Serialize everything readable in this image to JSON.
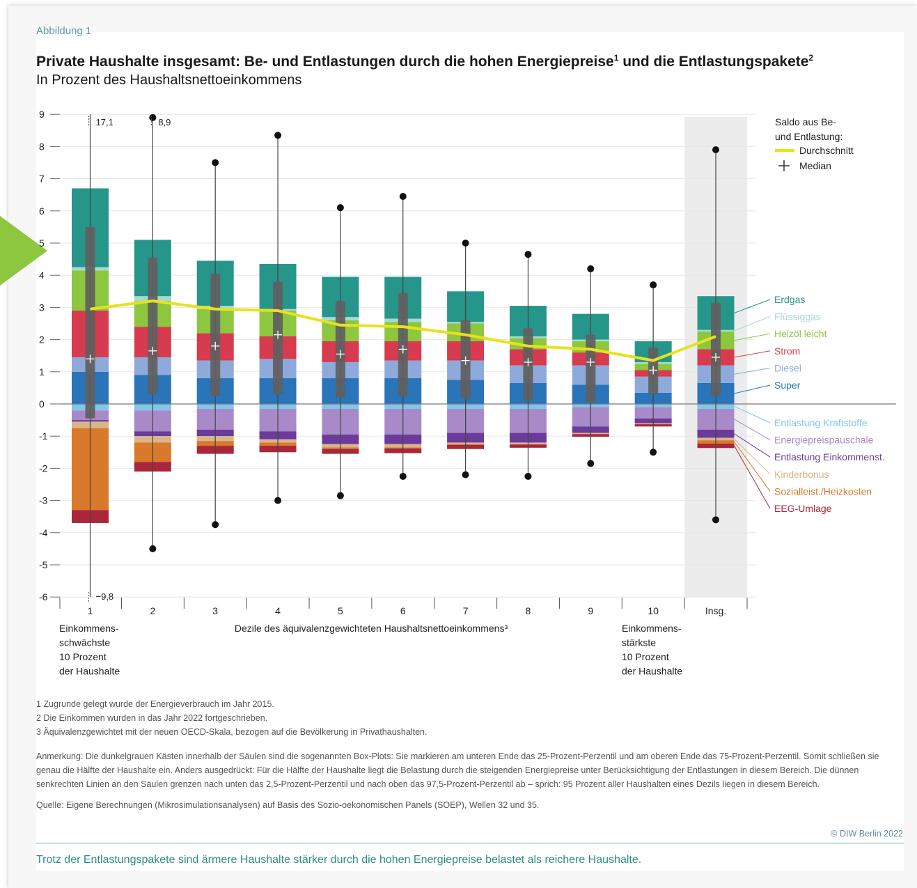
{
  "figure": {
    "label": "Abbildung 1",
    "title": "Private Haushalte insgesamt: Be- und Entlastungen durch die hohen Energiepreise",
    "title_sup1": "1",
    "title_mid": " und die Entlastungspakete",
    "title_sup2": "2",
    "subtitle": "In Prozent des Haushaltsnettoeinkommens",
    "notes": [
      "1  Zugrunde gelegt wurde der Energieverbrauch im Jahr 2015.",
      "2  Die Einkommen wurden in das Jahr 2022 fortgeschrieben.",
      "3  Äquivalenzgewichtet mit der neuen OECD-Skala, bezogen auf die Bevölkerung in Privathaushalten."
    ],
    "remark": "Anmerkung: Die dunkelgrauen Kästen innerhalb der Säulen sind die sogenannten Box-Plots: Sie markieren am unteren Ende das 25-Prozent-Perzentil und am oberen Ende das 75-Prozent-Perzentil. Somit schließen sie genau die Hälfte der Haushalte ein. Anders ausgedrückt: Für die Hälfte der Haushalte liegt die Belastung durch die steigenden Energiepreise unter Berücksichtigung der Entlastungen in diesem Bereich. Die dünnen senkrechten Linien an den Säulen grenzen nach unten das 2,5-Prozent-Perzentil und nach oben das 97,5-Prozent-Perzentil ab – sprich: 95 Prozent aller Haushalten eines Dezils liegen in diesem Bereich.",
    "source": "Quelle: Eigene Berechnungen (Mikrosimulationsanalysen) auf Basis des Sozio-oekonomischen Panels (SOEP), Wellen 32 und 35.",
    "copyright": "© DIW Berlin 2022",
    "summary": "Trotz der Entlastungspakete sind ärmere Haushalte stärker durch die hohen Energiepreise belastet als reichere Haushalte."
  },
  "chart_data": {
    "type": "bar",
    "stacked": true,
    "ylim": [
      -6,
      9
    ],
    "yticks": [
      9,
      8,
      7,
      6,
      5,
      4,
      3,
      2,
      1,
      0,
      -1,
      -2,
      -3,
      -4,
      -5,
      -6
    ],
    "categories": [
      "1",
      "2",
      "3",
      "4",
      "5",
      "6",
      "7",
      "8",
      "9",
      "10",
      "Insg."
    ],
    "xlabel": "Dezile des äquivalenzgewichteten Haushaltsnettoeinkommens³",
    "x_group_left": [
      "Einkommens-",
      "schwächste",
      "10 Prozent",
      "der Haushalte"
    ],
    "x_group_right": [
      "Einkommens-",
      "stärkste",
      "10 Prozent",
      "der Haushalte"
    ],
    "positive_series": [
      {
        "name": "Super",
        "color": "#2a74b9",
        "values": [
          1.0,
          0.9,
          0.8,
          0.8,
          0.8,
          0.8,
          0.75,
          0.65,
          0.6,
          0.35,
          0.65
        ]
      },
      {
        "name": "Diesel",
        "color": "#8eaadb",
        "values": [
          0.45,
          0.55,
          0.55,
          0.6,
          0.5,
          0.55,
          0.6,
          0.55,
          0.6,
          0.5,
          0.55
        ]
      },
      {
        "name": "Strom",
        "color": "#d63b4f",
        "values": [
          1.45,
          0.95,
          0.85,
          0.7,
          0.65,
          0.6,
          0.6,
          0.5,
          0.4,
          0.2,
          0.5
        ]
      },
      {
        "name": "Heizöl leicht",
        "color": "#8dc63f",
        "values": [
          1.25,
          0.8,
          0.75,
          0.8,
          0.65,
          0.6,
          0.55,
          0.35,
          0.35,
          0.2,
          0.55
        ]
      },
      {
        "name": "Flüssiggas",
        "color": "#a6d9d4",
        "values": [
          0.1,
          0.15,
          0.1,
          0.05,
          0.1,
          0.1,
          0.05,
          0.05,
          0.05,
          0.05,
          0.05
        ]
      },
      {
        "name": "Erdgas",
        "color": "#27968a",
        "values": [
          2.45,
          1.75,
          1.4,
          1.4,
          1.25,
          1.3,
          0.95,
          0.95,
          0.8,
          0.65,
          1.05
        ]
      }
    ],
    "negative_series": [
      {
        "name": "Entlastung Kraftstoffe",
        "color": "#7fc6ea",
        "values": [
          -0.2,
          -0.2,
          -0.15,
          -0.15,
          -0.15,
          -0.15,
          -0.15,
          -0.15,
          -0.1,
          -0.1,
          -0.15
        ]
      },
      {
        "name": "Energiepreispauschale",
        "color": "#a88ac9",
        "values": [
          -0.3,
          -0.65,
          -0.65,
          -0.7,
          -0.8,
          -0.8,
          -0.75,
          -0.75,
          -0.6,
          -0.35,
          -0.65
        ]
      },
      {
        "name": "Entlastung Einkommenst.",
        "color": "#6a3b9a",
        "values": [
          -0.05,
          -0.15,
          -0.2,
          -0.25,
          -0.3,
          -0.3,
          -0.3,
          -0.3,
          -0.2,
          -0.15,
          -0.25
        ]
      },
      {
        "name": "Kinderbonus",
        "color": "#d9b58a",
        "values": [
          -0.2,
          -0.2,
          -0.15,
          -0.1,
          -0.1,
          -0.1,
          -0.05,
          -0.05,
          -0.03,
          -0.02,
          -0.08
        ]
      },
      {
        "name": "Sozialleist./Heizkosten",
        "color": "#d9792b",
        "values": [
          -2.55,
          -0.6,
          -0.15,
          -0.1,
          -0.05,
          -0.03,
          -0.02,
          -0.01,
          -0.01,
          -0.01,
          -0.1
        ]
      },
      {
        "name": "EEG-Umlage",
        "color": "#a8273a",
        "values": [
          -0.4,
          -0.3,
          -0.25,
          -0.2,
          -0.15,
          -0.15,
          -0.13,
          -0.1,
          -0.08,
          -0.07,
          -0.14
        ]
      }
    ],
    "box": {
      "q1": [
        -0.45,
        0.3,
        0.25,
        0.3,
        0.2,
        0.25,
        0.15,
        0.1,
        0.05,
        0.3,
        0.25
      ],
      "q3": [
        5.5,
        4.55,
        4.05,
        3.8,
        3.2,
        3.45,
        2.6,
        2.35,
        2.15,
        1.75,
        3.15
      ],
      "median": [
        1.4,
        1.65,
        1.8,
        2.15,
        1.55,
        1.7,
        1.35,
        1.3,
        1.3,
        1.05,
        1.45
      ],
      "p2_5": [
        -9.8,
        -4.5,
        -3.75,
        -3.0,
        -2.85,
        -2.25,
        -2.2,
        -2.25,
        -1.85,
        -1.5,
        -3.6
      ],
      "p97_5": [
        17.1,
        8.9,
        7.5,
        8.35,
        6.1,
        6.45,
        5.0,
        4.65,
        4.2,
        3.7,
        7.9
      ]
    },
    "mean_line": {
      "name": "Durchschnitt",
      "color": "#e8e21e",
      "values": [
        2.95,
        3.2,
        2.95,
        2.9,
        2.45,
        2.4,
        2.15,
        1.8,
        1.7,
        1.35,
        2.1
      ]
    },
    "overflow_labels": [
      {
        "category": "1",
        "text": "17,1",
        "end": "top"
      },
      {
        "category": "2",
        "text": "8,9",
        "end": "top"
      },
      {
        "category": "1",
        "text": "−9,8",
        "end": "bottom"
      }
    ],
    "legend_title": [
      "Saldo aus Be-",
      "und Entlastung:"
    ],
    "legend_mean": "Durchschnitt",
    "legend_median": "Median",
    "legend_position": "top-right",
    "highlight_category": "Insg.",
    "grid": true
  }
}
